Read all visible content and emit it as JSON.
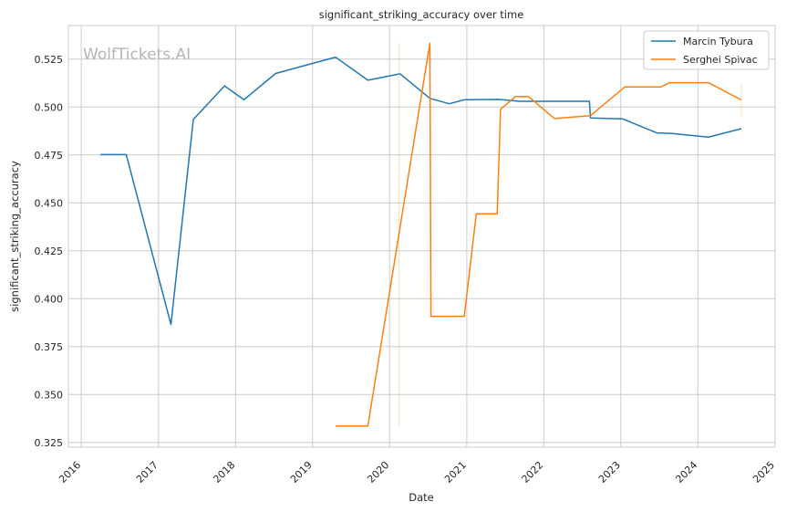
{
  "chart_data": {
    "type": "line",
    "title": "significant_striking_accuracy over time",
    "xlabel": "Date",
    "ylabel": "significant_striking_accuracy",
    "watermark": "WolfTickets.AI",
    "xlim": [
      "2015-11-01",
      "2025-01-01"
    ],
    "ylim": [
      0.3225,
      0.5425
    ],
    "x_ticks": [
      "2016",
      "2017",
      "2018",
      "2019",
      "2020",
      "2021",
      "2022",
      "2023",
      "2024",
      "2025"
    ],
    "y_ticks": [
      "0.325",
      "0.350",
      "0.375",
      "0.400",
      "0.425",
      "0.450",
      "0.475",
      "0.500",
      "0.525"
    ],
    "grid": true,
    "legend_position": "top-right",
    "series": [
      {
        "name": "Marcin Tybura",
        "color": "#1f77b4",
        "points": [
          [
            "2016-04-01",
            0.4752
          ],
          [
            "2016-08-01",
            0.4752
          ],
          [
            "2017-03-01",
            0.3865
          ],
          [
            "2017-06-15",
            0.4935
          ],
          [
            "2017-11-10",
            0.511
          ],
          [
            "2018-02-10",
            0.5038
          ],
          [
            "2018-07-10",
            0.5175
          ],
          [
            "2019-04-20",
            0.526
          ],
          [
            "2019-09-20",
            0.514
          ],
          [
            "2020-02-20",
            0.5173
          ],
          [
            "2020-07-10",
            0.5045
          ],
          [
            "2020-10-10",
            0.5017
          ],
          [
            "2020-12-20",
            0.5038
          ],
          [
            "2021-06-01",
            0.504
          ],
          [
            "2021-09-10",
            0.503
          ],
          [
            "2022-08-05",
            0.503
          ],
          [
            "2022-08-10",
            0.4943
          ],
          [
            "2023-01-10",
            0.4938
          ],
          [
            "2023-06-20",
            0.4865
          ],
          [
            "2023-09-01",
            0.4862
          ],
          [
            "2024-02-20",
            0.4843
          ],
          [
            "2024-07-25",
            0.4887
          ]
        ]
      },
      {
        "name": "Serghei Spivac",
        "color": "#ff7f0e",
        "points": [
          [
            "2019-04-20",
            0.3335
          ],
          [
            "2019-09-20",
            0.3335
          ],
          [
            "2020-07-10",
            0.5333
          ],
          [
            "2020-07-15",
            0.3908
          ],
          [
            "2020-12-20",
            0.3908
          ],
          [
            "2021-02-15",
            0.4443
          ],
          [
            "2021-05-25",
            0.4443
          ],
          [
            "2021-06-10",
            0.4988
          ],
          [
            "2021-08-20",
            0.5055
          ],
          [
            "2021-10-20",
            0.5055
          ],
          [
            "2022-02-20",
            0.494
          ],
          [
            "2022-08-10",
            0.4955
          ],
          [
            "2023-01-20",
            0.5105
          ],
          [
            "2023-07-10",
            0.5105
          ],
          [
            "2023-08-20",
            0.5127
          ],
          [
            "2024-02-20",
            0.5127
          ],
          [
            "2024-07-25",
            0.5037
          ]
        ],
        "error_bars": [
          {
            "x": "2020-02-15",
            "low": 0.3335,
            "high": 0.5333
          },
          {
            "x": "2024-07-25",
            "low": 0.4945,
            "high": 0.5127
          }
        ]
      }
    ]
  }
}
